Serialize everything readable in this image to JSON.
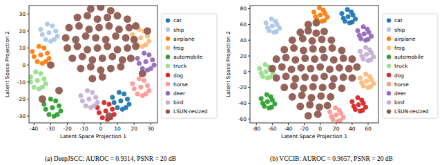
{
  "chart_data": [
    {
      "type": "scatter",
      "title": "(a) DeepJSCC: AUROC = 0.9314, PSNR = 20 dB",
      "xlabel": "Latent Space Projection 1",
      "ylabel": "Latent Space Projection 2",
      "xlim": [
        -43,
        34
      ],
      "ylim": [
        -34,
        35
      ],
      "xticks": [
        -40,
        -30,
        -20,
        -10,
        0,
        10,
        20,
        30
      ],
      "yticks": [
        -30,
        -20,
        -10,
        0,
        10,
        20,
        30
      ],
      "legend": "right",
      "series": [
        {
          "name": "cat",
          "color": "#1f77b4",
          "x": [
            12,
            16,
            8,
            14,
            10,
            17,
            7,
            13,
            11,
            15
          ],
          "values": [
            -21,
            -20,
            -22,
            -17,
            -25,
            -23,
            -19,
            -26,
            -16,
            -25
          ]
        },
        {
          "name": "ship",
          "color": "#aec7e8",
          "x": [
            -31,
            -27,
            -35,
            -29,
            -33,
            -26,
            -36,
            -30,
            -32,
            -28
          ],
          "values": [
            19,
            20,
            18,
            23,
            15,
            17,
            21,
            14,
            24,
            15
          ]
        },
        {
          "name": "airplane",
          "color": "#ff7f0e",
          "x": [
            -36,
            -32,
            -40,
            -34,
            -38,
            -31,
            -41,
            -35,
            -37,
            -33
          ],
          "values": [
            6,
            7,
            5,
            10,
            2,
            4,
            8,
            1,
            11,
            2
          ]
        },
        {
          "name": "frog",
          "color": "#ffbb78",
          "x": [
            24,
            28,
            20,
            26,
            22,
            29,
            19,
            25,
            23,
            27
          ],
          "values": [
            16,
            17,
            15,
            20,
            12,
            14,
            18,
            11,
            21,
            12
          ]
        },
        {
          "name": "automobile",
          "color": "#2ca02c",
          "x": [
            -29,
            -25,
            -33,
            -27,
            -31,
            -24,
            -34,
            -28,
            -30,
            -26
          ],
          "values": [
            -25,
            -24,
            -26,
            -21,
            -29,
            -27,
            -23,
            -30,
            -20,
            -29
          ]
        },
        {
          "name": "truck",
          "color": "#98df8a",
          "x": [
            -38,
            -34,
            -42,
            -36,
            -40,
            -33,
            -42,
            -37,
            -39,
            -35
          ],
          "values": [
            -9,
            -8,
            -10,
            -5,
            -13,
            -11,
            -7,
            -14,
            -4,
            -13
          ]
        },
        {
          "name": "dog",
          "color": "#d62728",
          "x": [
            3,
            7,
            -1,
            5,
            1,
            8,
            -2,
            4,
            2,
            6
          ],
          "values": [
            -27,
            -26,
            -28,
            -23,
            -31,
            -29,
            -25,
            -32,
            -22,
            -31
          ]
        },
        {
          "name": "horse",
          "color": "#ff9896",
          "x": [
            24,
            28,
            20,
            26,
            22,
            29,
            19,
            25,
            23,
            27
          ],
          "values": [
            -13,
            -12,
            -14,
            -9,
            -17,
            -15,
            -11,
            -18,
            -8,
            -17
          ]
        },
        {
          "name": "deer",
          "color": "#9467bd",
          "x": [
            27,
            31,
            23,
            29,
            25,
            32,
            22,
            28,
            26,
            30
          ],
          "values": [
            2,
            3,
            1,
            6,
            -2,
            0,
            4,
            -3,
            7,
            -2
          ]
        },
        {
          "name": "bird",
          "color": "#c5b0d5",
          "x": [
            -7,
            -3,
            -11,
            -5,
            -9,
            -2,
            -12,
            -6,
            -8,
            -4
          ],
          "values": [
            -20,
            -19,
            -21,
            -16,
            -24,
            -22,
            -18,
            -25,
            -15,
            -24
          ]
        },
        {
          "name": "LSUN-resized",
          "color": "#8c564b",
          "x": [
            -6,
            0,
            6,
            -14,
            -8,
            -2,
            4,
            10,
            16,
            -19,
            -13,
            -7,
            -1,
            5,
            11,
            17,
            21,
            -21,
            -15,
            -9,
            -3,
            3,
            9,
            15,
            20,
            -20,
            -14,
            -8,
            -2,
            4,
            10,
            16,
            21,
            -17,
            -11,
            -5,
            1,
            7,
            13,
            18,
            -12,
            -6,
            0,
            6,
            12,
            -5,
            1,
            -30,
            25,
            -25,
            5,
            28,
            -35
          ],
          "values": [
            33,
            34,
            32,
            28,
            29,
            27,
            28,
            29,
            27,
            22,
            23,
            21,
            22,
            23,
            21,
            22,
            23,
            16,
            15,
            17,
            16,
            15,
            17,
            16,
            15,
            10,
            11,
            9,
            10,
            11,
            9,
            10,
            11,
            4,
            5,
            3,
            4,
            5,
            3,
            4,
            -2,
            -1,
            -3,
            -2,
            -1,
            -8,
            -7,
            0,
            -5,
            -15,
            -30,
            20,
            -20
          ]
        }
      ]
    },
    {
      "type": "scatter",
      "title": "(b) VCCIB: AUROC = 0.9657, PSNR = 20 dB",
      "xlabel": "Latent Space Projection 1",
      "ylabel": "Latent Space Projection 2",
      "xlim": [
        -88,
        73
      ],
      "ylim": [
        -65,
        84
      ],
      "xticks": [
        -80,
        -60,
        -40,
        -20,
        0,
        20,
        40,
        60
      ],
      "yticks": [
        -60,
        -40,
        -20,
        0,
        20,
        40,
        60,
        80
      ],
      "legend": "right",
      "series": [
        {
          "name": "cat",
          "color": "#1f77b4",
          "x": [
            35,
            41,
            29,
            39,
            31,
            44,
            27,
            37,
            34,
            40
          ],
          "values": [
            70,
            72,
            68,
            76,
            64,
            67,
            74,
            62,
            79,
            63
          ]
        },
        {
          "name": "ship",
          "color": "#aec7e8",
          "x": [
            -60,
            -54,
            -66,
            -56,
            -64,
            -51,
            -68,
            -58,
            -61,
            -55
          ],
          "values": [
            58,
            60,
            56,
            64,
            52,
            55,
            62,
            50,
            67,
            51
          ]
        },
        {
          "name": "airplane",
          "color": "#ff7f0e",
          "x": [
            0,
            6,
            -6,
            4,
            -4,
            9,
            -8,
            2,
            -1,
            5
          ],
          "values": [
            72,
            74,
            70,
            78,
            66,
            69,
            76,
            64,
            81,
            65
          ]
        },
        {
          "name": "frog",
          "color": "#ffbb78",
          "x": [
            58,
            64,
            52,
            62,
            54,
            67,
            50,
            60,
            57,
            63
          ],
          "values": [
            -12,
            -10,
            -14,
            -6,
            -18,
            -15,
            -8,
            -20,
            -3,
            -19
          ]
        },
        {
          "name": "automobile",
          "color": "#2ca02c",
          "x": [
            -66,
            -60,
            -72,
            -62,
            -70,
            -57,
            -74,
            -64,
            -67,
            -61
          ],
          "values": [
            -38,
            -36,
            -40,
            -32,
            -44,
            -41,
            -34,
            -46,
            -29,
            -45
          ]
        },
        {
          "name": "truck",
          "color": "#98df8a",
          "x": [
            -68,
            -62,
            -74,
            -64,
            -72,
            -59,
            -76,
            -66,
            -69,
            -63
          ],
          "values": [
            0,
            2,
            -2,
            6,
            -6,
            -3,
            4,
            -8,
            9,
            -7
          ]
        },
        {
          "name": "dog",
          "color": "#d62728",
          "x": [
            48,
            54,
            42,
            52,
            44,
            57,
            40,
            50,
            47,
            53
          ],
          "values": [
            -42,
            -40,
            -44,
            -36,
            -48,
            -45,
            -38,
            -50,
            -33,
            -49
          ]
        },
        {
          "name": "horse",
          "color": "#ff9896",
          "x": [
            20,
            26,
            14,
            24,
            16,
            29,
            12,
            22,
            19,
            25
          ],
          "values": [
            -55,
            -53,
            -57,
            -49,
            -61,
            -58,
            -51,
            -63,
            -46,
            -62
          ]
        },
        {
          "name": "deer",
          "color": "#9467bd",
          "x": [
            55,
            61,
            49,
            59,
            51,
            64,
            47,
            57,
            54,
            60
          ],
          "values": [
            48,
            50,
            46,
            54,
            42,
            45,
            52,
            40,
            57,
            41
          ]
        },
        {
          "name": "bird",
          "color": "#c5b0d5",
          "x": [
            58,
            64,
            52,
            62,
            54,
            67,
            50,
            60,
            57,
            63
          ],
          "values": [
            22,
            24,
            20,
            28,
            16,
            19,
            26,
            14,
            31,
            15
          ]
        },
        {
          "name": "LSUN-resized",
          "color": "#8c564b",
          "x": [
            -15,
            -5,
            -25,
            -15,
            -5,
            5,
            -35,
            -22,
            -10,
            2,
            14,
            -45,
            -33,
            -21,
            -9,
            3,
            15,
            27,
            -55,
            -43,
            -31,
            -19,
            -7,
            5,
            17,
            29,
            40,
            -60,
            -48,
            -36,
            -24,
            -12,
            0,
            12,
            24,
            36,
            46,
            -55,
            -43,
            -31,
            -19,
            -7,
            5,
            17,
            29,
            40,
            -45,
            -33,
            -21,
            -9,
            3,
            15,
            27,
            -35,
            -23,
            -11,
            1,
            13,
            -25,
            -13,
            -1,
            9,
            -15,
            -3
          ],
          "values": [
            60,
            62,
            50,
            52,
            49,
            51,
            40,
            42,
            39,
            41,
            40,
            28,
            30,
            27,
            29,
            28,
            30,
            27,
            16,
            18,
            15,
            17,
            16,
            18,
            15,
            17,
            16,
            4,
            6,
            3,
            5,
            4,
            6,
            3,
            5,
            4,
            6,
            -8,
            -6,
            -9,
            -7,
            -8,
            -6,
            -9,
            -7,
            -8,
            -20,
            -18,
            -21,
            -19,
            -20,
            -18,
            -21,
            -32,
            -30,
            -33,
            -31,
            -32,
            -44,
            -42,
            -45,
            -43,
            -56,
            -54
          ]
        }
      ]
    }
  ]
}
